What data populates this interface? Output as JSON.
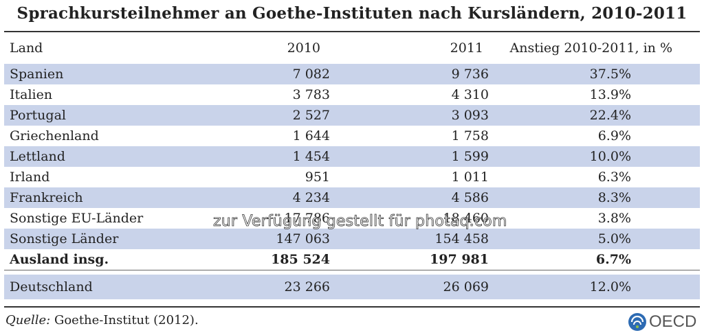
{
  "title": "Sprachkursteilnehmer an Goethe-Instituten nach Kursländern, 2010-2011",
  "table": {
    "headers": [
      "Land",
      "2010",
      "2011",
      "Anstieg 2010-2011, in %"
    ],
    "rows": [
      {
        "land": "Spanien",
        "y2010": "7 082",
        "y2011": "9 736",
        "inc": "37.5%"
      },
      {
        "land": "Italien",
        "y2010": "3 783",
        "y2011": "4 310",
        "inc": "13.9%"
      },
      {
        "land": "Portugal",
        "y2010": "2 527",
        "y2011": "3 093",
        "inc": "22.4%"
      },
      {
        "land": "Griechenland",
        "y2010": "1 644",
        "y2011": "1 758",
        "inc": "6.9%"
      },
      {
        "land": "Lettland",
        "y2010": "1 454",
        "y2011": "1 599",
        "inc": "10.0%"
      },
      {
        "land": "Irland",
        "y2010": "951",
        "y2011": "1 011",
        "inc": "6.3%"
      },
      {
        "land": "Frankreich",
        "y2010": "4 234",
        "y2011": "4 586",
        "inc": "8.3%"
      },
      {
        "land": "Sonstige EU-Länder",
        "y2010": "17 786",
        "y2011": "18 460",
        "inc": "3.8%"
      },
      {
        "land": "Sonstige Länder",
        "y2010": "147 063",
        "y2011": "154 458",
        "inc": "5.0%"
      },
      {
        "land": "Ausland insg.",
        "y2010": "185 524",
        "y2011": "197 981",
        "inc": "6.7%"
      },
      {
        "land": "Deutschland",
        "y2010": "23 266",
        "y2011": "26 069",
        "inc": "12.0%"
      }
    ]
  },
  "source": {
    "label": "Quelle:",
    "text": " Goethe-Institut (2012)."
  },
  "watermark": "zur Verfügung gestellt für photaq.com",
  "logo": {
    "text": "OECD",
    "icon": "oecd-globe-icon"
  },
  "colors": {
    "band": "#c9d3ea",
    "logo_blue": "#2d6bb3"
  }
}
